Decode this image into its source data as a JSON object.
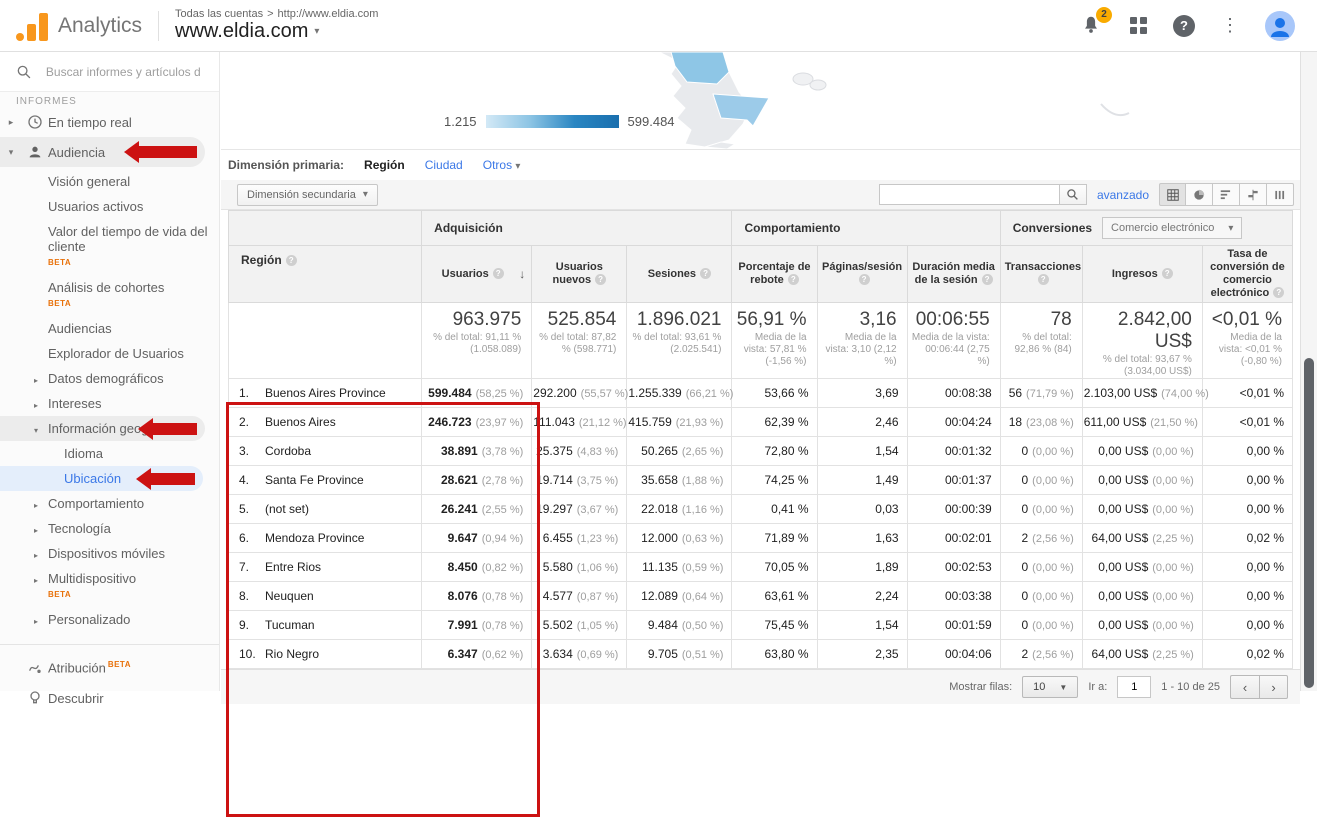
{
  "header": {
    "app_name": "Analytics",
    "breadcrumb": {
      "root": "Todas las cuentas",
      "sep": ">",
      "path": "http://www.eldia.com"
    },
    "property": "www.eldia.com",
    "notifications": "2"
  },
  "icons": {
    "caret_down": "▾",
    "caret_right": "▸",
    "caret_select": "▼",
    "more": "⋮",
    "sort_desc": "↓",
    "help": "?",
    "chevron_left": "‹",
    "chevron_right": "›"
  },
  "sidebar": {
    "search_placeholder": "Buscar informes y artículos de",
    "section": "INFORMES",
    "realtime": "En tiempo real",
    "audience": "Audiencia",
    "beta_label": "BETA",
    "audience_children": [
      {
        "label": "Visión general"
      },
      {
        "label": "Usuarios activos"
      },
      {
        "label": "Valor del tiempo de vida del cliente"
      },
      {
        "label": "Análisis de cohortes"
      },
      {
        "label": "Audiencias"
      },
      {
        "label": "Explorador de Usuarios"
      },
      {
        "label": "Datos demográficos"
      },
      {
        "label": "Intereses"
      },
      {
        "label": "Información geográfica"
      },
      {
        "label": "Idioma"
      },
      {
        "label": "Ubicación"
      },
      {
        "label": "Comportamiento"
      },
      {
        "label": "Tecnología"
      },
      {
        "label": "Dispositivos móviles"
      },
      {
        "label": "Multidispositivo"
      },
      {
        "label": "Personalizado"
      }
    ],
    "attribution": "Atribución",
    "discover": "Descubrir"
  },
  "map": {
    "legend_min": "1.215",
    "legend_max": "599.484"
  },
  "dimensions": {
    "primary_label": "Dimensión primaria:",
    "tabs": [
      "Región",
      "Ciudad",
      "Otros"
    ],
    "secondary_button": "Dimensión secundaria"
  },
  "toolbar": {
    "search_value": "",
    "advanced_link": "avanzado"
  },
  "table": {
    "groups": {
      "acquisition": "Adquisición",
      "behavior": "Comportamiento",
      "conversions": "Conversiones",
      "ecommerce_selector": "Comercio electrónico"
    },
    "columns": [
      "Región",
      "Usuarios",
      "Usuarios nuevos",
      "Sesiones",
      "Porcentaje de rebote",
      "Páginas/sesión",
      "Duración media de la sesión",
      "Transacciones",
      "Ingresos",
      "Tasa de conversión de comercio electrónico"
    ],
    "summary": {
      "usuarios": "963.975",
      "usuarios_sub": "% del total: 91,11 % (1.058.089)",
      "nuevos": "525.854",
      "nuevos_sub": "% del total: 87,82 % (598.771)",
      "sesiones": "1.896.021",
      "sesiones_sub": "% del total: 93,61 % (2.025.541)",
      "rebote": "56,91 %",
      "rebote_sub": "Media de la vista: 57,81 % (-1,56 %)",
      "paginas": "3,16",
      "paginas_sub": "Media de la vista: 3,10 (2,12 %)",
      "duracion": "00:06:55",
      "duracion_sub": "Media de la vista: 00:06:44 (2,75 %)",
      "transacciones": "78",
      "transacciones_sub": "% del total: 92,86 % (84)",
      "ingresos": "2.842,00 US$",
      "ingresos_sub": "% del total: 93,67 % (3.034,00 US$)",
      "tasa": "<0,01 %",
      "tasa_sub": "Media de la vista: <0,01 % (-0,80 %)"
    },
    "rows": [
      {
        "rank": "1.",
        "region": "Buenos Aires Province",
        "usuarios": "599.484",
        "usuarios_pct": "(58,25 %)",
        "nuevos": "292.200",
        "nuevos_pct": "(55,57 %)",
        "sesiones": "1.255.339",
        "sesiones_pct": "(66,21 %)",
        "rebote": "53,66 %",
        "paginas": "3,69",
        "duracion": "00:08:38",
        "transacciones": "56",
        "transacciones_pct": "(71,79 %)",
        "ingresos": "2.103,00 US$",
        "ingresos_pct": "(74,00 %)",
        "tasa": "<0,01 %"
      },
      {
        "rank": "2.",
        "region": "Buenos Aires",
        "usuarios": "246.723",
        "usuarios_pct": "(23,97 %)",
        "nuevos": "111.043",
        "nuevos_pct": "(21,12 %)",
        "sesiones": "415.759",
        "sesiones_pct": "(21,93 %)",
        "rebote": "62,39 %",
        "paginas": "2,46",
        "duracion": "00:04:24",
        "transacciones": "18",
        "transacciones_pct": "(23,08 %)",
        "ingresos": "611,00 US$",
        "ingresos_pct": "(21,50 %)",
        "tasa": "<0,01 %"
      },
      {
        "rank": "3.",
        "region": "Cordoba",
        "usuarios": "38.891",
        "usuarios_pct": "(3,78 %)",
        "nuevos": "25.375",
        "nuevos_pct": "(4,83 %)",
        "sesiones": "50.265",
        "sesiones_pct": "(2,65 %)",
        "rebote": "72,80 %",
        "paginas": "1,54",
        "duracion": "00:01:32",
        "transacciones": "0",
        "transacciones_pct": "(0,00 %)",
        "ingresos": "0,00 US$",
        "ingresos_pct": "(0,00 %)",
        "tasa": "0,00 %"
      },
      {
        "rank": "4.",
        "region": "Santa Fe Province",
        "usuarios": "28.621",
        "usuarios_pct": "(2,78 %)",
        "nuevos": "19.714",
        "nuevos_pct": "(3,75 %)",
        "sesiones": "35.658",
        "sesiones_pct": "(1,88 %)",
        "rebote": "74,25 %",
        "paginas": "1,49",
        "duracion": "00:01:37",
        "transacciones": "0",
        "transacciones_pct": "(0,00 %)",
        "ingresos": "0,00 US$",
        "ingresos_pct": "(0,00 %)",
        "tasa": "0,00 %"
      },
      {
        "rank": "5.",
        "region": "(not set)",
        "usuarios": "26.241",
        "usuarios_pct": "(2,55 %)",
        "nuevos": "19.297",
        "nuevos_pct": "(3,67 %)",
        "sesiones": "22.018",
        "sesiones_pct": "(1,16 %)",
        "rebote": "0,41 %",
        "paginas": "0,03",
        "duracion": "00:00:39",
        "transacciones": "0",
        "transacciones_pct": "(0,00 %)",
        "ingresos": "0,00 US$",
        "ingresos_pct": "(0,00 %)",
        "tasa": "0,00 %"
      },
      {
        "rank": "6.",
        "region": "Mendoza Province",
        "usuarios": "9.647",
        "usuarios_pct": "(0,94 %)",
        "nuevos": "6.455",
        "nuevos_pct": "(1,23 %)",
        "sesiones": "12.000",
        "sesiones_pct": "(0,63 %)",
        "rebote": "71,89 %",
        "paginas": "1,63",
        "duracion": "00:02:01",
        "transacciones": "2",
        "transacciones_pct": "(2,56 %)",
        "ingresos": "64,00 US$",
        "ingresos_pct": "(2,25 %)",
        "tasa": "0,02 %"
      },
      {
        "rank": "7.",
        "region": "Entre Rios",
        "usuarios": "8.450",
        "usuarios_pct": "(0,82 %)",
        "nuevos": "5.580",
        "nuevos_pct": "(1,06 %)",
        "sesiones": "11.135",
        "sesiones_pct": "(0,59 %)",
        "rebote": "70,05 %",
        "paginas": "1,89",
        "duracion": "00:02:53",
        "transacciones": "0",
        "transacciones_pct": "(0,00 %)",
        "ingresos": "0,00 US$",
        "ingresos_pct": "(0,00 %)",
        "tasa": "0,00 %"
      },
      {
        "rank": "8.",
        "region": "Neuquen",
        "usuarios": "8.076",
        "usuarios_pct": "(0,78 %)",
        "nuevos": "4.577",
        "nuevos_pct": "(0,87 %)",
        "sesiones": "12.089",
        "sesiones_pct": "(0,64 %)",
        "rebote": "63,61 %",
        "paginas": "2,24",
        "duracion": "00:03:38",
        "transacciones": "0",
        "transacciones_pct": "(0,00 %)",
        "ingresos": "0,00 US$",
        "ingresos_pct": "(0,00 %)",
        "tasa": "0,00 %"
      },
      {
        "rank": "9.",
        "region": "Tucuman",
        "usuarios": "7.991",
        "usuarios_pct": "(0,78 %)",
        "nuevos": "5.502",
        "nuevos_pct": "(1,05 %)",
        "sesiones": "9.484",
        "sesiones_pct": "(0,50 %)",
        "rebote": "75,45 %",
        "paginas": "1,54",
        "duracion": "00:01:59",
        "transacciones": "0",
        "transacciones_pct": "(0,00 %)",
        "ingresos": "0,00 US$",
        "ingresos_pct": "(0,00 %)",
        "tasa": "0,00 %"
      },
      {
        "rank": "10.",
        "region": "Rio Negro",
        "usuarios": "6.347",
        "usuarios_pct": "(0,62 %)",
        "nuevos": "3.634",
        "nuevos_pct": "(0,69 %)",
        "sesiones": "9.705",
        "sesiones_pct": "(0,51 %)",
        "rebote": "63,80 %",
        "paginas": "2,35",
        "duracion": "00:04:06",
        "transacciones": "2",
        "transacciones_pct": "(2,56 %)",
        "ingresos": "64,00 US$",
        "ingresos_pct": "(2,25 %)",
        "tasa": "0,02 %"
      }
    ]
  },
  "pagination": {
    "rows_label": "Mostrar filas:",
    "rows_value": "10",
    "goto_label": "Ir a:",
    "goto_value": "1",
    "range": "1 - 10 de 25"
  }
}
